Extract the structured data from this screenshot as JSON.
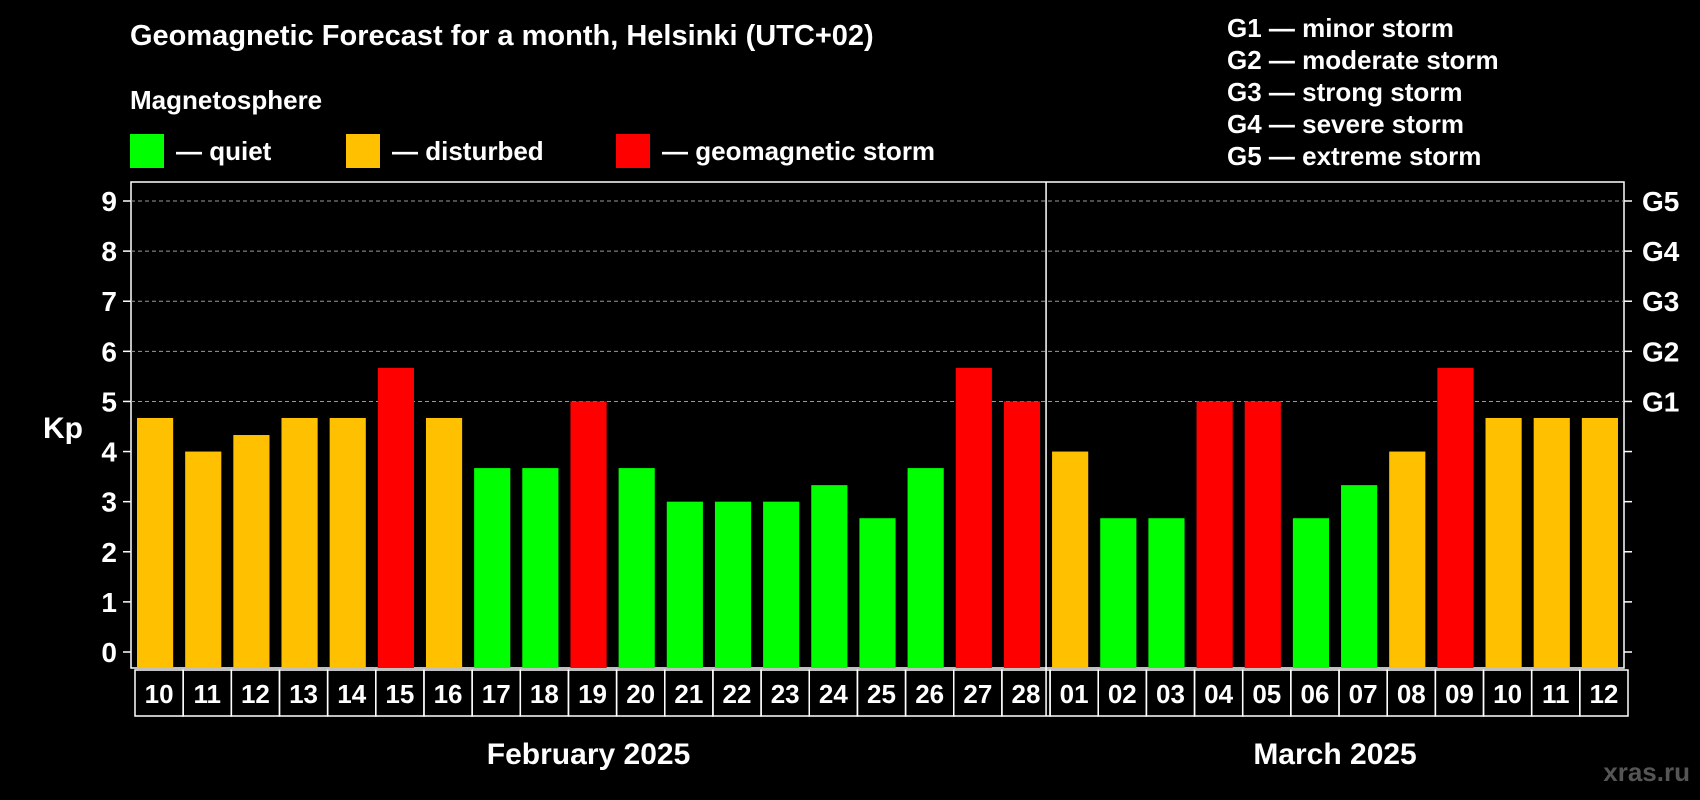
{
  "header": {
    "title": "Geomagnetic Forecast for a month, Helsinki (UTC+02)",
    "magnetosphere_label": "Magnetosphere"
  },
  "legend": [
    {
      "key": "quiet",
      "label": "— quiet",
      "color": "#00ff00"
    },
    {
      "key": "disturbed",
      "label": "— disturbed",
      "color": "#ffc000"
    },
    {
      "key": "storm",
      "label": "— geomagnetic storm",
      "color": "#ff0000"
    }
  ],
  "storm_scale": [
    "G1 — minor storm",
    "G2 — moderate storm",
    "G3 — strong storm",
    "G4 — severe storm",
    "G5 — extreme storm"
  ],
  "watermark": "xras.ru",
  "chart_data": {
    "type": "bar",
    "title": "Geomagnetic Forecast for a month, Helsinki (UTC+02)",
    "ylabel": "Kp",
    "ylim": [
      0,
      9
    ],
    "yticks": [
      0,
      1,
      2,
      3,
      4,
      5,
      6,
      7,
      8,
      9
    ],
    "right_axis_labels": [
      {
        "kp": 5,
        "label": "G1"
      },
      {
        "kp": 6,
        "label": "G2"
      },
      {
        "kp": 7,
        "label": "G3"
      },
      {
        "kp": 8,
        "label": "G4"
      },
      {
        "kp": 9,
        "label": "G5"
      }
    ],
    "grid": true,
    "months": [
      {
        "name": "February 2025",
        "days": 19
      },
      {
        "name": "March 2025",
        "days": 12
      }
    ],
    "categories": [
      "10",
      "11",
      "12",
      "13",
      "14",
      "15",
      "16",
      "17",
      "18",
      "19",
      "20",
      "21",
      "22",
      "23",
      "24",
      "25",
      "26",
      "27",
      "28",
      "01",
      "02",
      "03",
      "04",
      "05",
      "06",
      "07",
      "08",
      "09",
      "10",
      "11",
      "12"
    ],
    "values": [
      4.67,
      4.0,
      4.33,
      4.67,
      4.67,
      5.67,
      4.67,
      3.67,
      3.67,
      5.0,
      3.67,
      3.0,
      3.0,
      3.0,
      3.33,
      2.67,
      3.67,
      5.67,
      5.0,
      4.0,
      2.67,
      2.67,
      5.0,
      5.0,
      2.67,
      3.33,
      4.0,
      5.67,
      4.67,
      4.67,
      4.67
    ],
    "status": [
      "disturbed",
      "disturbed",
      "disturbed",
      "disturbed",
      "disturbed",
      "storm",
      "disturbed",
      "quiet",
      "quiet",
      "storm",
      "quiet",
      "quiet",
      "quiet",
      "quiet",
      "quiet",
      "quiet",
      "quiet",
      "storm",
      "storm",
      "disturbed",
      "quiet",
      "quiet",
      "storm",
      "storm",
      "quiet",
      "quiet",
      "disturbed",
      "storm",
      "disturbed",
      "disturbed",
      "disturbed"
    ],
    "colors": {
      "quiet": "#00ff00",
      "disturbed": "#ffc000",
      "storm": "#ff0000"
    }
  }
}
